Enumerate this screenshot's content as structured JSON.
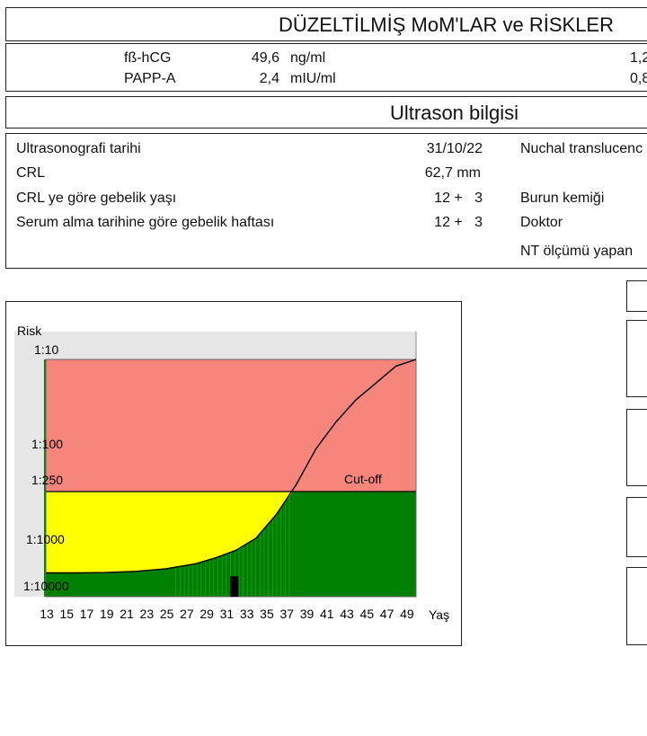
{
  "mom_section": {
    "title": "DÜZELTİLMİŞ  MoM'LAR ve RİSKLER",
    "rows": [
      {
        "name": "fß-hCG",
        "value": "49,6",
        "unit": "ng/ml",
        "mom": "1,2"
      },
      {
        "name": "PAPP-A",
        "value": "2,4",
        "unit": "mIU/ml",
        "mom": "0,8"
      }
    ]
  },
  "ultrasound": {
    "title": "Ultrason bilgisi",
    "rows": [
      {
        "label": "Ultrasonografi tarihi",
        "value": "31/10/22"
      },
      {
        "label": "CRL",
        "value": "62,7 mm"
      },
      {
        "label": "CRL ye göre gebelik yaşı",
        "value": "12 +   3"
      },
      {
        "label": "Serum alma tarihine göre gebelik haftası",
        "value": "12 +   3"
      }
    ],
    "right_labels": [
      "Nuchal translucenc",
      "Burun kemiği",
      "Doktor",
      "NT ölçümü yapan"
    ]
  },
  "chart_data": {
    "type": "area",
    "ylabel": "Risk",
    "xlabel": "Yaş",
    "x_ticks": [
      13,
      15,
      17,
      19,
      21,
      23,
      25,
      27,
      29,
      31,
      33,
      35,
      37,
      39,
      41,
      43,
      45,
      47,
      49
    ],
    "y_ticks": [
      "1:10",
      "1:100",
      "1:250",
      "1:1000",
      "1:10000"
    ],
    "y_scale": "log (risk denominator)",
    "xlim": [
      13,
      50
    ],
    "ylim_denominator": [
      10,
      10000
    ],
    "cutoff_denominator": 250,
    "cutoff_label": "Cut-off",
    "zones": [
      {
        "name": "high",
        "range": [
          "1:10",
          "1:250"
        ],
        "color": "#f6867b"
      },
      {
        "name": "moderate",
        "range": [
          "1:250",
          "1:10000"
        ],
        "color": "#ffff00"
      },
      {
        "name": "background",
        "color": "#008000"
      }
    ],
    "age_risk_curve": [
      {
        "x": 13,
        "y": 5500
      },
      {
        "x": 16,
        "y": 5500
      },
      {
        "x": 19,
        "y": 5400
      },
      {
        "x": 22,
        "y": 5100
      },
      {
        "x": 25,
        "y": 4500
      },
      {
        "x": 28,
        "y": 3500
      },
      {
        "x": 30,
        "y": 2600
      },
      {
        "x": 32,
        "y": 1800
      },
      {
        "x": 34,
        "y": 1000
      },
      {
        "x": 36,
        "y": 500
      },
      {
        "x": 38,
        "y": 220
      },
      {
        "x": 40,
        "y": 110
      },
      {
        "x": 42,
        "y": 55
      },
      {
        "x": 44,
        "y": 30
      },
      {
        "x": 46,
        "y": 19
      },
      {
        "x": 48,
        "y": 12
      },
      {
        "x": 50,
        "y": 10
      }
    ],
    "patient_age": 31,
    "patient_risk_marker_top_denominator": 6500,
    "colors": {
      "curve": "#000000",
      "marker": "#000000",
      "axis_bg": "#e6e6e6"
    }
  }
}
